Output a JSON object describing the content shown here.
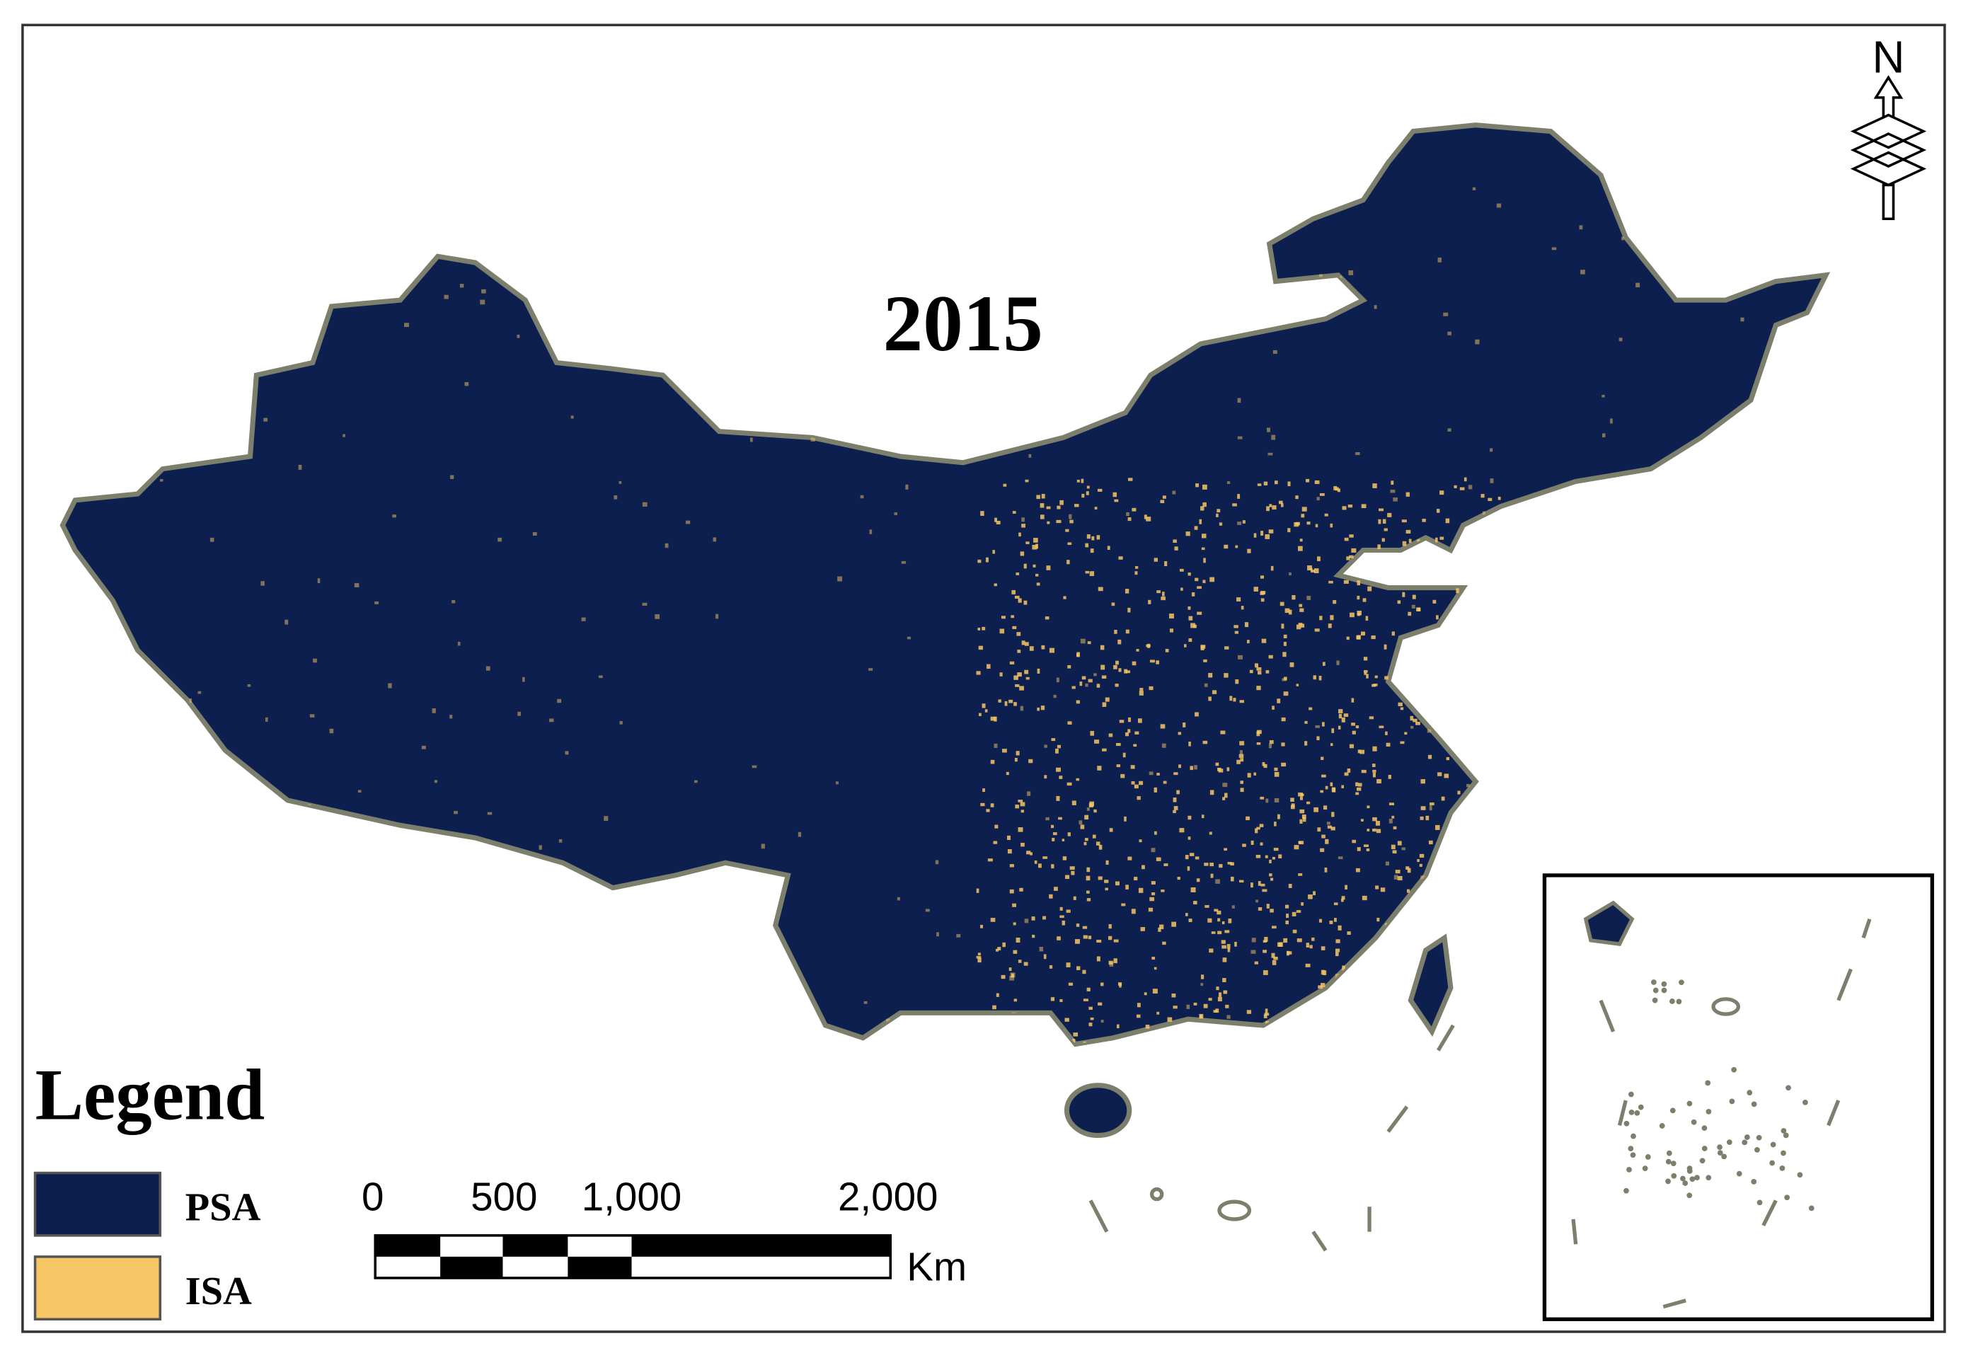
{
  "map": {
    "title": "2015",
    "north_label": "N",
    "legend": {
      "title": "Legend",
      "items": [
        {
          "label": "PSA",
          "color": "#0c1f4e"
        },
        {
          "label": "ISA",
          "color": "#f7c664"
        }
      ]
    },
    "scale_bar": {
      "labels": [
        "0",
        "500",
        "1,000",
        "2,000"
      ],
      "unit": "Km"
    }
  }
}
